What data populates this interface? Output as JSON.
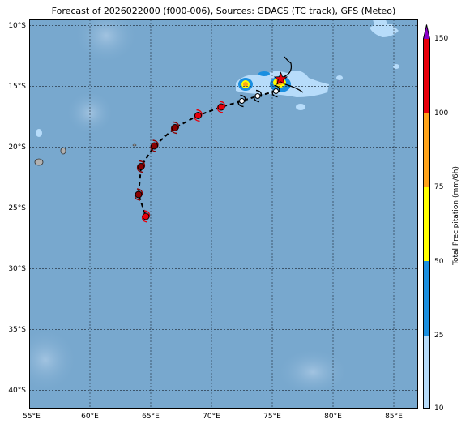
{
  "title": "Forecast of 2026022000 (f000-006), Sources: GDACS (TC track), GFS (Meteo)",
  "map": {
    "lon_ticks": [
      "55°E",
      "60°E",
      "65°E",
      "70°E",
      "75°E",
      "80°E",
      "85°E"
    ],
    "lat_ticks": [
      "10°S",
      "15°S",
      "20°S",
      "25°S",
      "30°S",
      "35°S",
      "40°S"
    ],
    "lon_range": [
      55,
      87
    ],
    "lat_range": [
      -41.5,
      -9.5
    ],
    "ocean_color": "#78a8ce",
    "land_color": "#b0b0b0",
    "current_position_marker": "red-star",
    "track": [
      {
        "lon": 75.7,
        "lat": -14.4,
        "stage": "current"
      },
      {
        "lon": 75.3,
        "lat": -15.4,
        "stage": "depression"
      },
      {
        "lon": 73.8,
        "lat": -15.8,
        "stage": "depression"
      },
      {
        "lon": 72.5,
        "lat": -16.2,
        "stage": "depression"
      },
      {
        "lon": 70.8,
        "lat": -16.7,
        "stage": "storm"
      },
      {
        "lon": 68.9,
        "lat": -17.4,
        "stage": "storm"
      },
      {
        "lon": 67.0,
        "lat": -18.4,
        "stage": "cyclone"
      },
      {
        "lon": 65.3,
        "lat": -19.9,
        "stage": "cyclone"
      },
      {
        "lon": 64.2,
        "lat": -21.6,
        "stage": "cyclone"
      },
      {
        "lon": 64.0,
        "lat": -23.9,
        "stage": "cyclone"
      },
      {
        "lon": 64.6,
        "lat": -25.7,
        "stage": "storm"
      }
    ]
  },
  "colorbar": {
    "label": "Total Precipitation (mm/6h)",
    "ticks": [
      "10",
      "25",
      "50",
      "75",
      "100",
      "150"
    ],
    "colors": [
      "#b7dcfa",
      "#1a8fe0",
      "#ffff00",
      "#ffa31a",
      "#e8000b",
      "#8a00c8"
    ]
  }
}
